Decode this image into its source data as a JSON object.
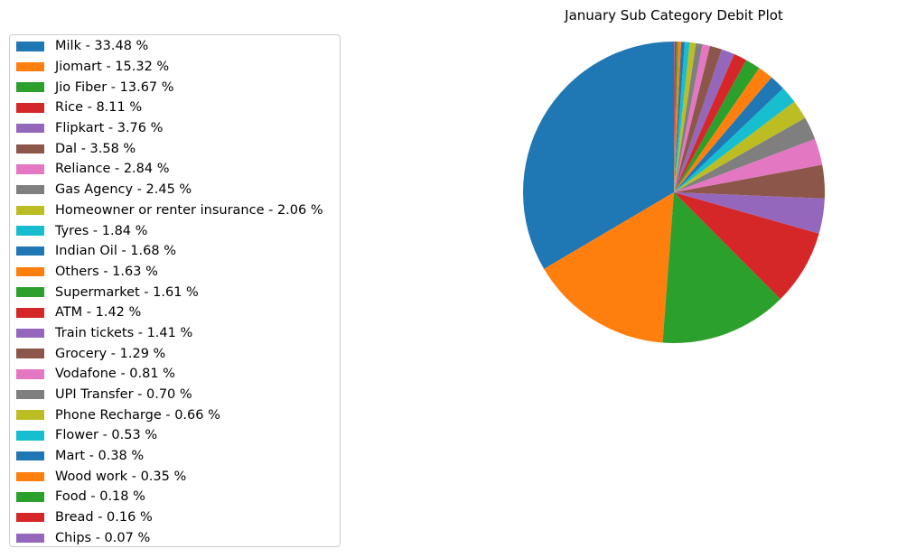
{
  "chart_data": {
    "type": "pie",
    "title": "January Sub Category Debit Plot",
    "legend_position": "left",
    "start_angle_deg": 90,
    "direction": "counterclockwise",
    "slices": [
      {
        "label": "Milk - 33.48 %",
        "value": 33.48,
        "color": "#1f77b4"
      },
      {
        "label": "Jiomart - 15.32 %",
        "value": 15.32,
        "color": "#ff7f0e"
      },
      {
        "label": "Jio Fiber - 13.67 %",
        "value": 13.67,
        "color": "#2ca02c"
      },
      {
        "label": "Rice - 8.11 %",
        "value": 8.11,
        "color": "#d62728"
      },
      {
        "label": "Flipkart - 3.76 %",
        "value": 3.76,
        "color": "#9467bd"
      },
      {
        "label": "Dal - 3.58 %",
        "value": 3.58,
        "color": "#8c564b"
      },
      {
        "label": "Reliance - 2.84 %",
        "value": 2.84,
        "color": "#e377c2"
      },
      {
        "label": "Gas Agency - 2.45 %",
        "value": 2.45,
        "color": "#7f7f7f"
      },
      {
        "label": "Homeowner or renter insurance - 2.06 %",
        "value": 2.06,
        "color": "#bcbd22"
      },
      {
        "label": "Tyres - 1.84 %",
        "value": 1.84,
        "color": "#17becf"
      },
      {
        "label": "Indian Oil - 1.68 %",
        "value": 1.68,
        "color": "#1f77b4"
      },
      {
        "label": "Others - 1.63 %",
        "value": 1.63,
        "color": "#ff7f0e"
      },
      {
        "label": "Supermarket - 1.61 %",
        "value": 1.61,
        "color": "#2ca02c"
      },
      {
        "label": "ATM - 1.42 %",
        "value": 1.42,
        "color": "#d62728"
      },
      {
        "label": "Train tickets - 1.41 %",
        "value": 1.41,
        "color": "#9467bd"
      },
      {
        "label": "Grocery - 1.29 %",
        "value": 1.29,
        "color": "#8c564b"
      },
      {
        "label": "Vodafone - 0.81 %",
        "value": 0.81,
        "color": "#e377c2"
      },
      {
        "label": "UPI Transfer - 0.70 %",
        "value": 0.7,
        "color": "#7f7f7f"
      },
      {
        "label": "Phone Recharge - 0.66 %",
        "value": 0.66,
        "color": "#bcbd22"
      },
      {
        "label": "Flower - 0.53 %",
        "value": 0.53,
        "color": "#17becf"
      },
      {
        "label": "Mart - 0.38 %",
        "value": 0.38,
        "color": "#1f77b4"
      },
      {
        "label": "Wood work - 0.35 %",
        "value": 0.35,
        "color": "#ff7f0e"
      },
      {
        "label": "Food - 0.18 %",
        "value": 0.18,
        "color": "#2ca02c"
      },
      {
        "label": "Bread - 0.16 %",
        "value": 0.16,
        "color": "#d62728"
      },
      {
        "label": "Chips - 0.07 %",
        "value": 0.07,
        "color": "#9467bd"
      }
    ]
  }
}
